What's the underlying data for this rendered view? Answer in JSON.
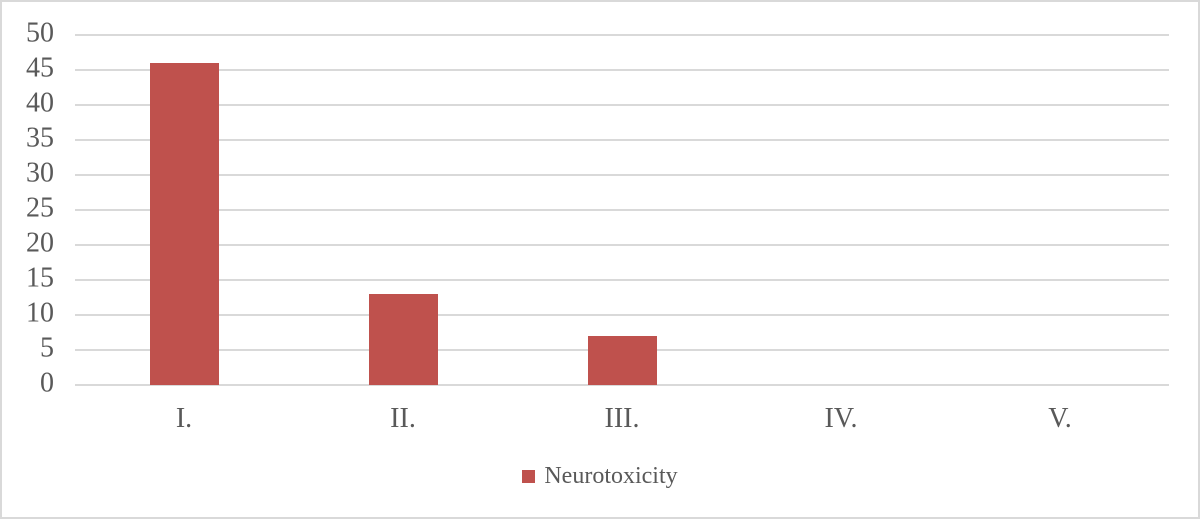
{
  "chart_data": {
    "type": "bar",
    "title": "",
    "xlabel": "",
    "ylabel": "",
    "categories": [
      "I.",
      "II.",
      "III.",
      "IV.",
      "V."
    ],
    "series": [
      {
        "name": "Neurotoxicity",
        "values": [
          46,
          13,
          7,
          0,
          0
        ]
      }
    ],
    "ylim": [
      0,
      50
    ],
    "ytick_step": 5,
    "yticks": [
      0,
      5,
      10,
      15,
      20,
      25,
      30,
      35,
      40,
      45,
      50
    ],
    "grid": true,
    "legend_position": "bottom-center",
    "colors": {
      "bar": "#BF514D",
      "gridline": "#D9D9D9",
      "axis_label": "#595959",
      "background": "#FFFFFF",
      "border": "#D9D9D9"
    }
  }
}
